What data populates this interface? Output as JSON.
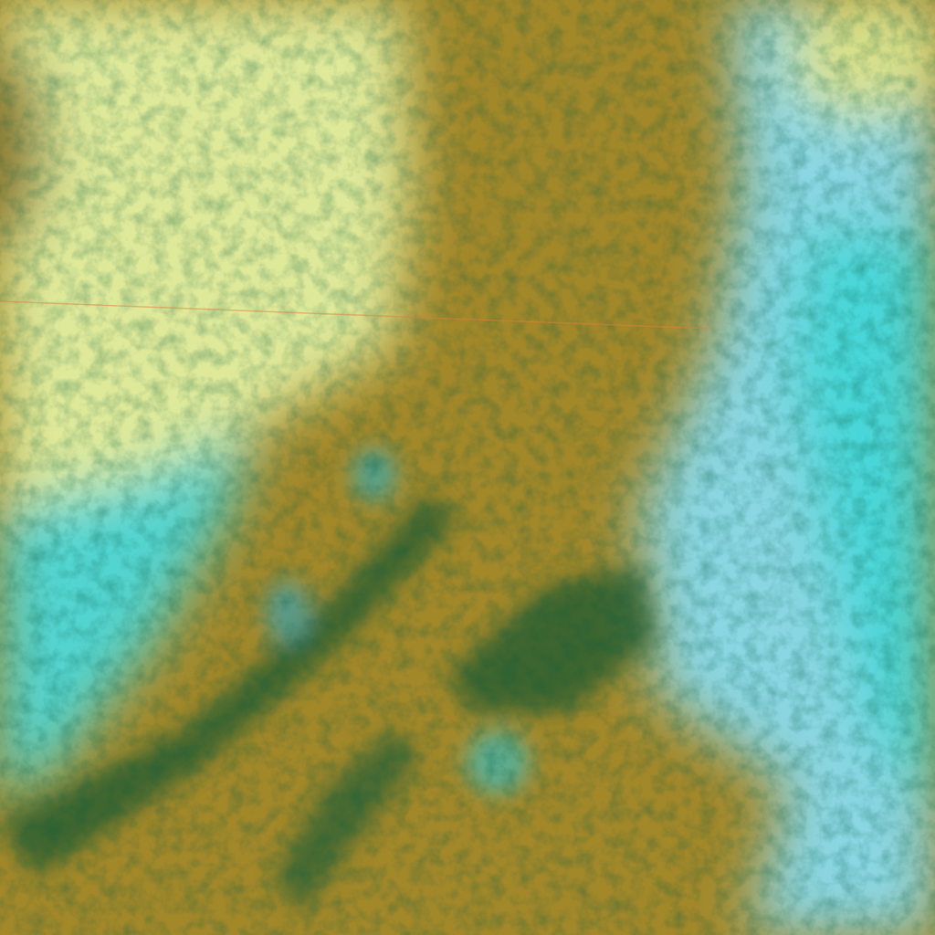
{
  "image": {
    "kind": "false-color satellite imagery",
    "colors": {
      "pale_cloud": "#dfe99a",
      "cyan_cloud": "#45d3d0",
      "olive_land": "#a3882a",
      "dark_green": "#1f5a30",
      "light_blue": "#8ad6e2",
      "bright_green": "#3ff07a"
    }
  }
}
